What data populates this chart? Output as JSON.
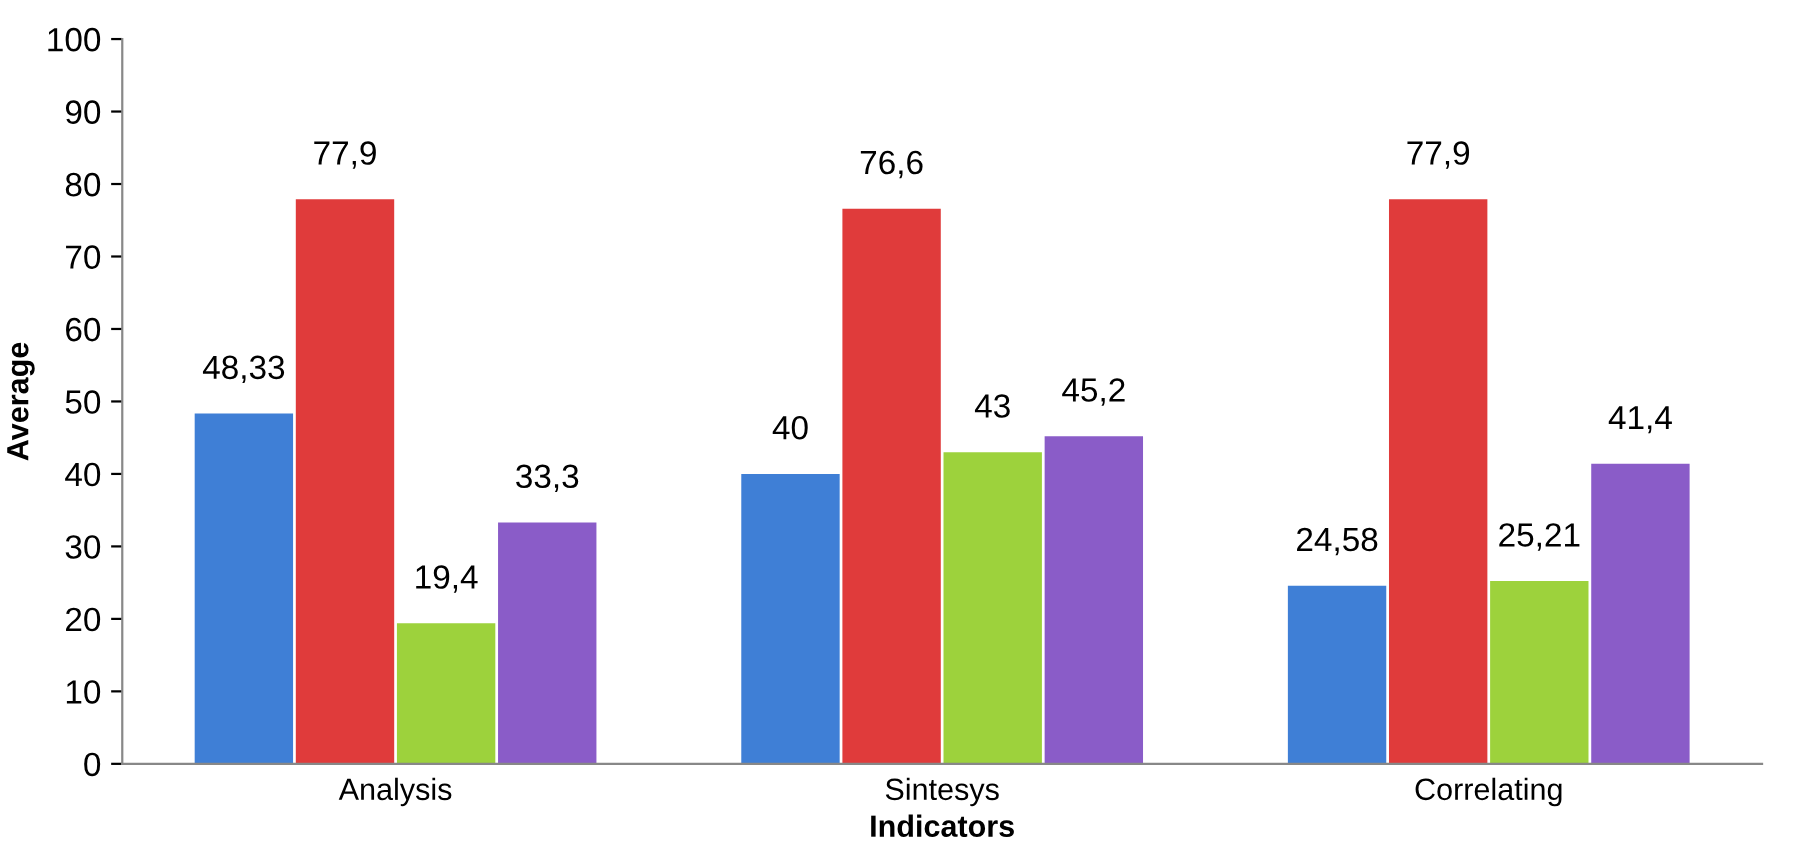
{
  "chart_data": {
    "type": "bar",
    "xlabel": "Indicators",
    "ylabel": "Average",
    "categories": [
      "Analysis",
      "Sintesys",
      "Correlating"
    ],
    "series": [
      {
        "color": "#3f7fd6",
        "values": [
          48.33,
          40,
          24.58
        ],
        "value_labels": [
          "48,33",
          "40",
          "24,58"
        ]
      },
      {
        "color": "#e03b3b",
        "values": [
          77.9,
          76.6,
          77.9
        ],
        "value_labels": [
          "77,9",
          "76,6",
          "77,9"
        ]
      },
      {
        "color": "#9dd23c",
        "values": [
          19.4,
          43,
          25.21
        ],
        "value_labels": [
          "19,4",
          "43",
          "25,21"
        ]
      },
      {
        "color": "#8a5cc8",
        "values": [
          33.3,
          45.2,
          41.4
        ],
        "value_labels": [
          "33,3",
          "45,2",
          "41,4"
        ]
      }
    ],
    "ylim": [
      0,
      100
    ],
    "yticks": [
      0,
      10,
      20,
      30,
      40,
      50,
      60,
      70,
      80,
      90,
      100
    ],
    "grid": false,
    "legend": false
  }
}
